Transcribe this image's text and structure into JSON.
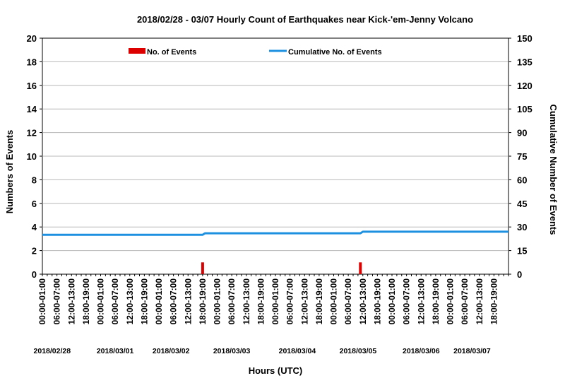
{
  "chart_data": {
    "type": "bar",
    "title": "2018/02/28 - 03/07 Hourly Count of Earthquakes near Kick-'em-Jenny Volcano",
    "xlabel": "Hours (UTC)",
    "ylabel": "Numbers of Events",
    "y2label": "Cumulative Number of Events",
    "ylim": [
      0,
      20
    ],
    "y2lim": [
      0,
      150
    ],
    "yticks": [
      0,
      2,
      4,
      6,
      8,
      10,
      12,
      14,
      16,
      18,
      20
    ],
    "y2ticks": [
      0,
      15,
      30,
      45,
      60,
      75,
      90,
      105,
      120,
      135,
      150
    ],
    "grid": true,
    "legend_position": "top",
    "hours_total": 192,
    "x_tick_labels": [
      "00:00-01:00",
      "06:00-07:00",
      "12:00-13:00",
      "18:00-19:00",
      "00:00-01:00",
      "06:00-07:00",
      "12:00-13:00",
      "18:00-19:00",
      "00:00-01:00",
      "06:00-07:00",
      "12:00-13:00",
      "18:00-19:00",
      "00:00-01:00",
      "06:00-07:00",
      "12:00-13:00",
      "18:00-19:00",
      "00:00-01:00",
      "06:00-07:00",
      "12:00-13:00",
      "18:00-19:00",
      "00:00-01:00",
      "06:00-07:00",
      "12:00-13:00",
      "18:00-19:00",
      "00:00-01:00",
      "06:00-07:00",
      "12:00-13:00",
      "18:00-19:00",
      "00:00-01:00",
      "06:00-07:00",
      "12:00-13:00",
      "18:00-19:00"
    ],
    "x_tick_hours": [
      0,
      6,
      12,
      18,
      24,
      30,
      36,
      42,
      48,
      54,
      60,
      66,
      72,
      78,
      84,
      90,
      96,
      102,
      108,
      114,
      120,
      126,
      132,
      138,
      144,
      150,
      156,
      162,
      168,
      174,
      180,
      186
    ],
    "date_labels": [
      {
        "label": "2018/02/28",
        "hour": 4
      },
      {
        "label": "2018/03/01",
        "hour": 30
      },
      {
        "label": "2018/03/02",
        "hour": 53
      },
      {
        "label": "2018/03/03",
        "hour": 78
      },
      {
        "label": "2018/03/04",
        "hour": 105
      },
      {
        "label": "2018/03/05",
        "hour": 130
      },
      {
        "label": "2018/03/06",
        "hour": 156
      },
      {
        "label": "2018/03/07",
        "hour": 177
      }
    ],
    "series": [
      {
        "name": "No. of Events",
        "type": "bar",
        "color": "#dd0000",
        "points": [
          {
            "hour": 66,
            "value": 1
          },
          {
            "hour": 131,
            "value": 1
          }
        ]
      },
      {
        "name": "Cumulative No. of Events",
        "type": "line",
        "axis": "right",
        "color": "#1e90e0",
        "start": 25,
        "points": [
          {
            "hour": 0,
            "value": 25
          },
          {
            "hour": 66,
            "value": 25
          },
          {
            "hour": 67,
            "value": 26
          },
          {
            "hour": 131,
            "value": 26
          },
          {
            "hour": 132,
            "value": 27
          },
          {
            "hour": 192,
            "value": 27
          }
        ]
      }
    ]
  }
}
